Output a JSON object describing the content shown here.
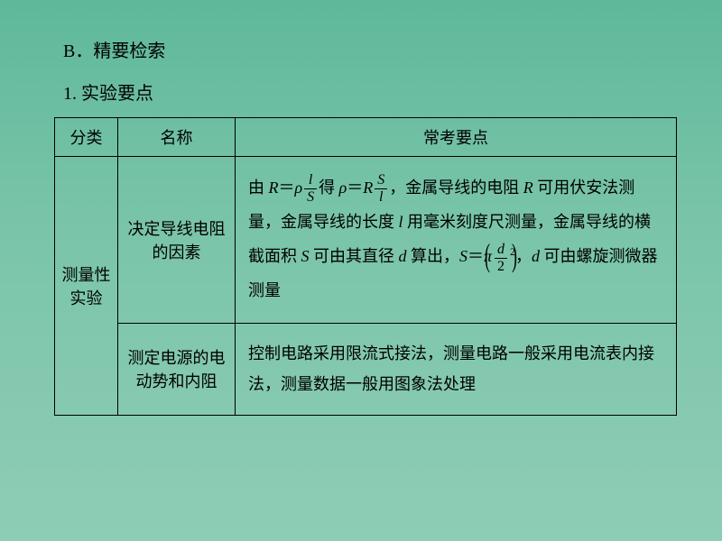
{
  "slide": {
    "background_gradient": [
      "#5fb89a",
      "#79c4a9",
      "#8ecdb5"
    ],
    "heading_b": "B．精要检索",
    "heading_1": "1. 实验要点",
    "table": {
      "border_color": "#000000",
      "header": {
        "category": "分类",
        "name": "名称",
        "points": "常考要点"
      },
      "rows": [
        {
          "category": "测量性实验",
          "name": "决定导线电阻的因素",
          "points_parts": {
            "p1": "由 ",
            "R": "R",
            "eq": "＝",
            "rho": "ρ",
            "frac_l": "l",
            "frac_S": "S",
            "p2": "得 ",
            "frac_S2": "S",
            "frac_l2": "l",
            "p3": "，金属导线的电阻 ",
            "p4": " 可用伏安法测量，金属导线的长度 ",
            "l": "l",
            "p5": " 用毫米刻度尺测量，金属导线的横截面积 ",
            "S": "S",
            "p6": " 可由其直径 ",
            "d": "d",
            "p7": " 算出，",
            "pi": "π",
            "frac_d": "d",
            "frac_2": "2",
            "sq": "2",
            "p8": "，",
            "p9": " 可由螺旋测微器测量"
          }
        },
        {
          "name": "测定电源的电动势和内阻",
          "points": "控制电路采用限流式接法，测量电路一般采用电流表内接法，测量数据一般用图象法处理"
        }
      ]
    },
    "typography": {
      "body_fontsize_pt": 14,
      "heading_fontsize_pt": 15,
      "font_family": "SimSun"
    }
  }
}
